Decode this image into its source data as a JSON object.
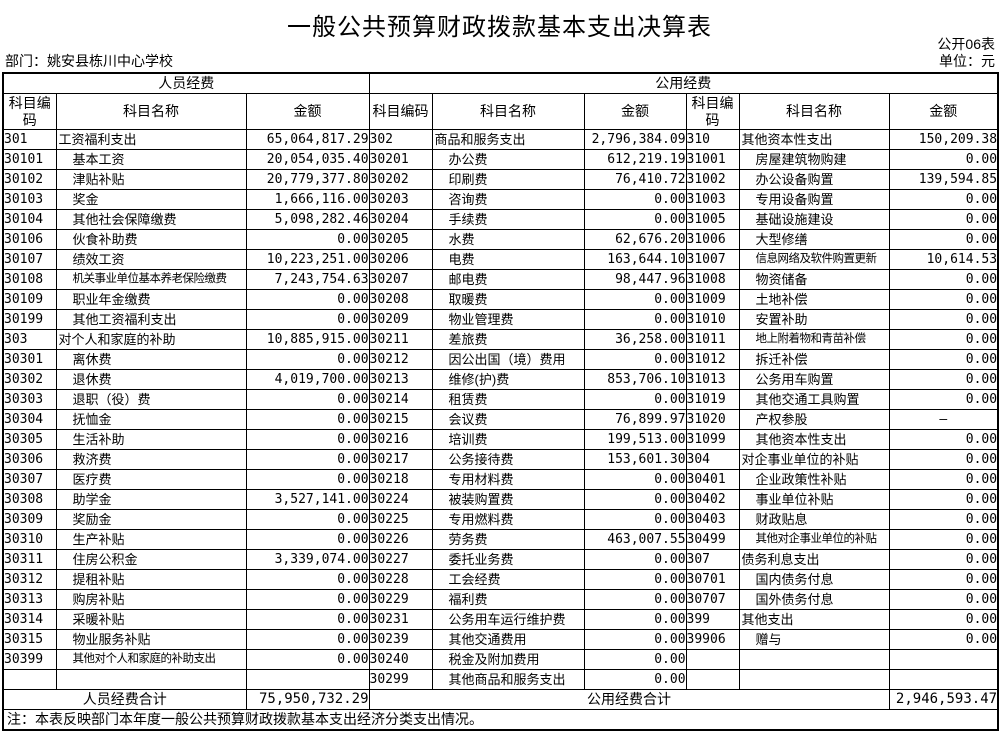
{
  "title": "一般公共预算财政拨款基本支出决算表",
  "meta": {
    "table_code": "公开06表",
    "department_label": "部门：姚安县栋川中心学校",
    "unit_label": "单位：元"
  },
  "table": {
    "group_headers": [
      "人员经费",
      "公用经费"
    ],
    "col_headers": [
      "科目编码",
      "科目名称",
      "金额",
      "科目编码",
      "科目名称",
      "金额",
      "科目编码",
      "科目名称",
      "金额"
    ],
    "rows": [
      [
        "301",
        "工资福利支出",
        "65,064,817.29",
        "302",
        "商品和服务支出",
        "2,796,384.09",
        "310",
        "其他资本性支出",
        "150,209.38"
      ],
      [
        "30101",
        "基本工资",
        "20,054,035.40",
        "30201",
        "办公费",
        "612,219.19",
        "31001",
        "房屋建筑物购建",
        "0.00"
      ],
      [
        "30102",
        "津贴补贴",
        "20,779,377.80",
        "30202",
        "印刷费",
        "76,410.72",
        "31002",
        "办公设备购置",
        "139,594.85"
      ],
      [
        "30103",
        "奖金",
        "1,666,116.00",
        "30203",
        "咨询费",
        "0.00",
        "31003",
        "专用设备购置",
        "0.00"
      ],
      [
        "30104",
        "其他社会保障缴费",
        "5,098,282.46",
        "30204",
        "手续费",
        "0.00",
        "31005",
        "基础设施建设",
        "0.00"
      ],
      [
        "30106",
        "伙食补助费",
        "0.00",
        "30205",
        "水费",
        "62,676.20",
        "31006",
        "大型修缮",
        "0.00"
      ],
      [
        "30107",
        "绩效工资",
        "10,223,251.00",
        "30206",
        "电费",
        "163,644.10",
        "31007",
        "信息网络及软件购置更新",
        "10,614.53"
      ],
      [
        "30108",
        "机关事业单位基本养老保险缴费",
        "7,243,754.63",
        "30207",
        "邮电费",
        "98,447.96",
        "31008",
        "物资储备",
        "0.00"
      ],
      [
        "30109",
        "职业年金缴费",
        "0.00",
        "30208",
        "取暖费",
        "0.00",
        "31009",
        "土地补偿",
        "0.00"
      ],
      [
        "30199",
        "其他工资福利支出",
        "0.00",
        "30209",
        "物业管理费",
        "0.00",
        "31010",
        "安置补助",
        "0.00"
      ],
      [
        "303",
        "对个人和家庭的补助",
        "10,885,915.00",
        "30211",
        "差旅费",
        "36,258.00",
        "31011",
        "地上附着物和青苗补偿",
        "0.00"
      ],
      [
        "30301",
        "离休费",
        "0.00",
        "30212",
        "因公出国（境）费用",
        "0.00",
        "31012",
        "拆迁补偿",
        "0.00"
      ],
      [
        "30302",
        "退休费",
        "4,019,700.00",
        "30213",
        "维修(护)费",
        "853,706.10",
        "31013",
        "公务用车购置",
        "0.00"
      ],
      [
        "30303",
        "退职（役）费",
        "0.00",
        "30214",
        "租赁费",
        "0.00",
        "31019",
        "其他交通工具购置",
        "0.00"
      ],
      [
        "30304",
        "抚恤金",
        "0.00",
        "30215",
        "会议费",
        "76,899.97",
        "31020",
        "产权参股",
        "—"
      ],
      [
        "30305",
        "生活补助",
        "0.00",
        "30216",
        "培训费",
        "199,513.00",
        "31099",
        "其他资本性支出",
        "0.00"
      ],
      [
        "30306",
        "救济费",
        "0.00",
        "30217",
        "公务接待费",
        "153,601.30",
        "304",
        "对企事业单位的补贴",
        "0.00"
      ],
      [
        "30307",
        "医疗费",
        "0.00",
        "30218",
        "专用材料费",
        "0.00",
        "30401",
        "企业政策性补贴",
        "0.00"
      ],
      [
        "30308",
        "助学金",
        "3,527,141.00",
        "30224",
        "被装购置费",
        "0.00",
        "30402",
        "事业单位补贴",
        "0.00"
      ],
      [
        "30309",
        "奖励金",
        "0.00",
        "30225",
        "专用燃料费",
        "0.00",
        "30403",
        "财政贴息",
        "0.00"
      ],
      [
        "30310",
        "生产补贴",
        "0.00",
        "30226",
        "劳务费",
        "463,007.55",
        "30499",
        "其他对企事业单位的补贴",
        "0.00"
      ],
      [
        "30311",
        "住房公积金",
        "3,339,074.00",
        "30227",
        "委托业务费",
        "0.00",
        "307",
        "债务利息支出",
        "0.00"
      ],
      [
        "30312",
        "提租补贴",
        "0.00",
        "30228",
        "工会经费",
        "0.00",
        "30701",
        "国内债务付息",
        "0.00"
      ],
      [
        "30313",
        "购房补贴",
        "0.00",
        "30229",
        "福利费",
        "0.00",
        "30707",
        "国外债务付息",
        "0.00"
      ],
      [
        "30314",
        "采暖补贴",
        "0.00",
        "30231",
        "公务用车运行维护费",
        "0.00",
        "399",
        "其他支出",
        "0.00"
      ],
      [
        "30315",
        "物业服务补贴",
        "0.00",
        "30239",
        "其他交通费用",
        "0.00",
        "39906",
        "赠与",
        "0.00"
      ],
      [
        "30399",
        "其他对个人和家庭的补助支出",
        "0.00",
        "30240",
        "税金及附加费用",
        "0.00",
        "",
        "",
        ""
      ],
      [
        "",
        "",
        "",
        "30299",
        "其他商品和服务支出",
        "0.00",
        "",
        "",
        ""
      ]
    ],
    "totals": {
      "personnel_label": "人员经费合计",
      "personnel_amount": "75,950,732.29",
      "public_label": "公用经费合计",
      "public_amount": "2,946,593.47"
    },
    "note": "注：本表反映部门本年度一般公共预算财政拨款基本支出经济分类支出情况。"
  }
}
